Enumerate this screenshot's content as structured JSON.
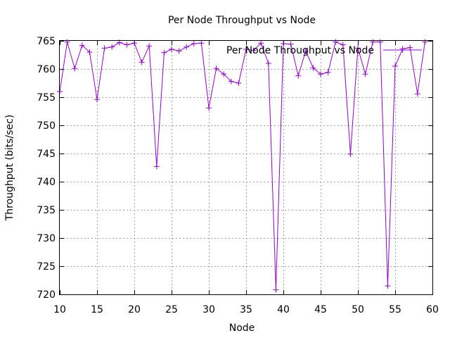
{
  "chart_data": {
    "type": "line",
    "title": "Per Node Throughput vs Node",
    "xlabel": "Node",
    "ylabel": "Throughput (bits/sec)",
    "xlim": [
      10,
      60
    ],
    "ylim": [
      720,
      765
    ],
    "x_ticks": [
      10,
      15,
      20,
      25,
      30,
      35,
      40,
      45,
      50,
      55,
      60
    ],
    "y_ticks": [
      720,
      725,
      730,
      735,
      740,
      745,
      750,
      755,
      760,
      765
    ],
    "grid": true,
    "legend_position": "top-right",
    "series_color": "#9400d3",
    "series": [
      {
        "name": "Per Node Throughput vs Node",
        "x": [
          10,
          11,
          12,
          13,
          14,
          15,
          16,
          17,
          18,
          19,
          20,
          21,
          22,
          23,
          24,
          25,
          26,
          27,
          28,
          29,
          30,
          31,
          32,
          33,
          34,
          35,
          36,
          37,
          38,
          39,
          40,
          41,
          42,
          43,
          44,
          45,
          46,
          47,
          48,
          49,
          50,
          51,
          52,
          53,
          54,
          55,
          56,
          57,
          58,
          59
        ],
        "values": [
          756.0,
          764.8,
          760.1,
          764.2,
          763.0,
          754.6,
          763.7,
          763.9,
          764.7,
          764.3,
          764.6,
          761.2,
          764.1,
          742.7,
          762.9,
          763.5,
          763.2,
          763.9,
          764.5,
          764.6,
          753.1,
          760.1,
          759.1,
          757.8,
          757.5,
          763.5,
          763.3,
          764.6,
          761.0,
          720.8,
          764.5,
          764.4,
          758.8,
          763.2,
          760.2,
          759.1,
          759.4,
          764.8,
          764.3,
          744.9,
          763.7,
          759.1,
          764.8,
          764.8,
          721.5,
          760.5,
          763.6,
          763.8,
          755.6,
          764.8
        ]
      }
    ]
  }
}
